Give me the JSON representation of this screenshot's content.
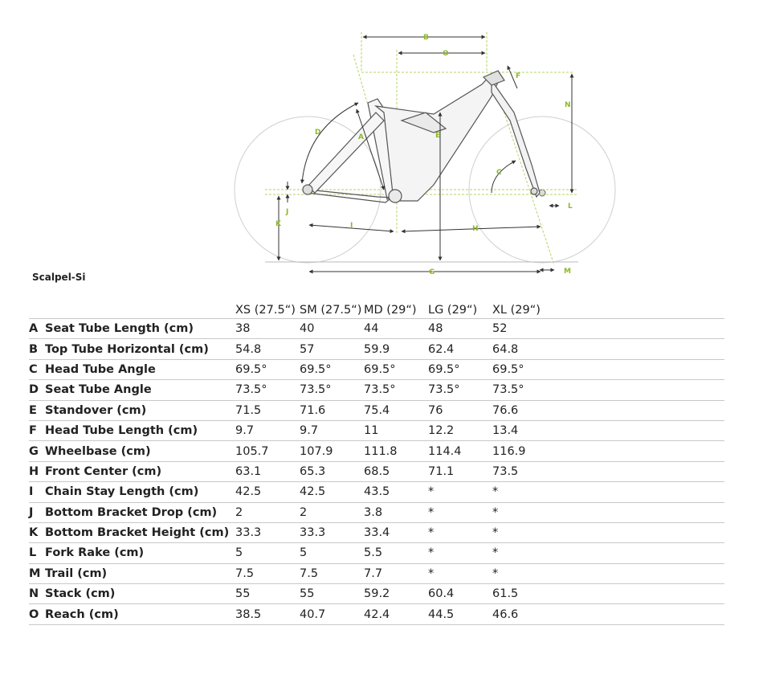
{
  "model_name": "Scalpel-Si",
  "diagram": {
    "dimension_letters": [
      "A",
      "B",
      "C",
      "D",
      "E",
      "F",
      "G",
      "H",
      "I",
      "J",
      "K",
      "L",
      "M",
      "N",
      "O"
    ],
    "accent_color": "#8db82c"
  },
  "table": {
    "sizes": [
      "XS (27.5“)",
      "SM (27.5“)",
      "MD (29“)",
      "LG (29“)",
      "XL (29“)"
    ],
    "rows": [
      {
        "letter": "A",
        "label": "Seat Tube Length (cm)",
        "values": [
          "38",
          "40",
          "44",
          "48",
          "52"
        ]
      },
      {
        "letter": "B",
        "label": "Top Tube Horizontal (cm)",
        "values": [
          "54.8",
          "57",
          "59.9",
          "62.4",
          "64.8"
        ]
      },
      {
        "letter": "C",
        "label": "Head Tube Angle",
        "values": [
          "69.5°",
          "69.5°",
          "69.5°",
          "69.5°",
          "69.5°"
        ]
      },
      {
        "letter": "D",
        "label": "Seat Tube Angle",
        "values": [
          "73.5°",
          "73.5°",
          "73.5°",
          "73.5°",
          "73.5°"
        ]
      },
      {
        "letter": "E",
        "label": "Standover (cm)",
        "values": [
          "71.5",
          "71.6",
          "75.4",
          "76",
          "76.6"
        ]
      },
      {
        "letter": "F",
        "label": "Head Tube Length (cm)",
        "values": [
          "9.7",
          "9.7",
          "11",
          "12.2",
          "13.4"
        ]
      },
      {
        "letter": "G",
        "label": "Wheelbase (cm)",
        "values": [
          "105.7",
          "107.9",
          "111.8",
          "114.4",
          "116.9"
        ]
      },
      {
        "letter": "H",
        "label": "Front Center (cm)",
        "values": [
          "63.1",
          "65.3",
          "68.5",
          "71.1",
          "73.5"
        ]
      },
      {
        "letter": "I",
        "label": "Chain Stay Length (cm)",
        "values": [
          "42.5",
          "42.5",
          "43.5",
          "*",
          "*"
        ]
      },
      {
        "letter": "J",
        "label": "Bottom Bracket Drop (cm)",
        "values": [
          "2",
          "2",
          "3.8",
          "*",
          "*"
        ]
      },
      {
        "letter": "K",
        "label": "Bottom Bracket Height (cm)",
        "values": [
          "33.3",
          "33.3",
          "33.4",
          "*",
          "*"
        ]
      },
      {
        "letter": "L",
        "label": "Fork Rake (cm)",
        "values": [
          "5",
          "5",
          "5.5",
          "*",
          "*"
        ]
      },
      {
        "letter": "M",
        "label": "Trail (cm)",
        "values": [
          "7.5",
          "7.5",
          "7.7",
          "*",
          "*"
        ]
      },
      {
        "letter": "N",
        "label": "Stack (cm)",
        "values": [
          "55",
          "55",
          "59.2",
          "60.4",
          "61.5"
        ]
      },
      {
        "letter": "O",
        "label": "Reach (cm)",
        "values": [
          "38.5",
          "40.7",
          "42.4",
          "44.5",
          "46.6"
        ]
      }
    ]
  }
}
